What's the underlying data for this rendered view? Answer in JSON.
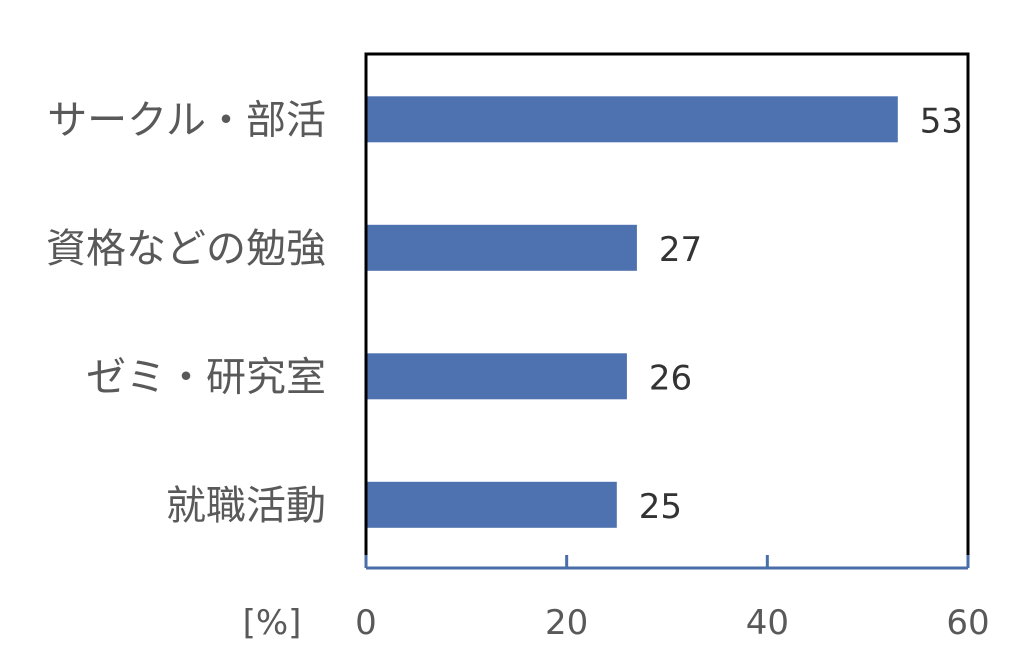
{
  "chart_data": {
    "type": "bar",
    "orientation": "horizontal",
    "categories": [
      "サークル・部活",
      "資格などの勉強",
      "ゼミ・研究室",
      "就職活動"
    ],
    "values": [
      53,
      27,
      26,
      25
    ],
    "data_labels": [
      "53",
      "27",
      "26",
      "25"
    ],
    "xunit": "[%]",
    "xlim": [
      0,
      60
    ],
    "xticks": [
      "0",
      "20",
      "40",
      "60"
    ],
    "grid": false,
    "legend": "none",
    "bar_color": "#4e71af",
    "axis_color": "#4a6ea8"
  }
}
